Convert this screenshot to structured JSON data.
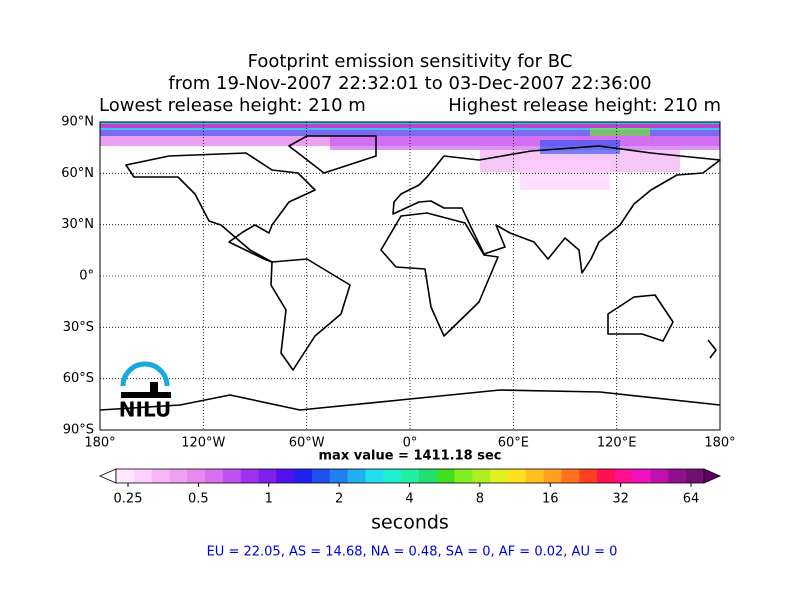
{
  "chart_data": {
    "type": "map",
    "title": [
      "Footprint emission sensitivity for BC",
      "from 19-Nov-2007 22:32:01 to 03-Dec-2007 22:36:00"
    ],
    "subtitle_left": "Lowest release height: 210 m",
    "subtitle_right": "Highest release height: 210 m",
    "xlim": [
      -180,
      180
    ],
    "ylim": [
      -90,
      90
    ],
    "xticks": [
      {
        "value": -180,
        "label": "180°"
      },
      {
        "value": -120,
        "label": "120°W"
      },
      {
        "value": -60,
        "label": "60°W"
      },
      {
        "value": 0,
        "label": "0°"
      },
      {
        "value": 60,
        "label": "60°E"
      },
      {
        "value": 120,
        "label": "120°E"
      },
      {
        "value": 180,
        "label": "180°"
      }
    ],
    "yticks": [
      {
        "value": -90,
        "label": "90°S"
      },
      {
        "value": -60,
        "label": "60°S"
      },
      {
        "value": -30,
        "label": "30°S"
      },
      {
        "value": 0,
        "label": "0°"
      },
      {
        "value": 30,
        "label": "30°N"
      },
      {
        "value": 60,
        "label": "60°N"
      },
      {
        "value": 90,
        "label": "90°N"
      }
    ],
    "grid": true,
    "max_value_text": "max value = 1411.18 sec",
    "logo": "NILU",
    "colorbar": {
      "log_scale": true,
      "ticks": [
        0.25,
        0.5,
        1,
        2,
        4,
        8,
        16,
        32,
        64
      ],
      "label": "seconds",
      "colors": [
        "#ffe8ff",
        "#ffd0ff",
        "#f8b8f8",
        "#f0a0f0",
        "#e888f0",
        "#d870f0",
        "#c050f0",
        "#a030f0",
        "#8020f0",
        "#5010f0",
        "#2020f0",
        "#2050f0",
        "#2080f0",
        "#20b0f0",
        "#20e0f0",
        "#20f0d0",
        "#20f0a0",
        "#20e070",
        "#40e020",
        "#80f020",
        "#b0f020",
        "#e0f020",
        "#ffe020",
        "#ffc020",
        "#ffa020",
        "#ff7020",
        "#ff4020",
        "#ff1050",
        "#ff1090",
        "#f010c0",
        "#c010b0",
        "#901090",
        "#701070"
      ],
      "under_color": "#ffffff",
      "over_color": "#600060"
    },
    "footer": "EU = 22.05,  AS = 14.68,  NA = 0.48,  SA = 0,  AF = 0.02,  AU = 0"
  }
}
